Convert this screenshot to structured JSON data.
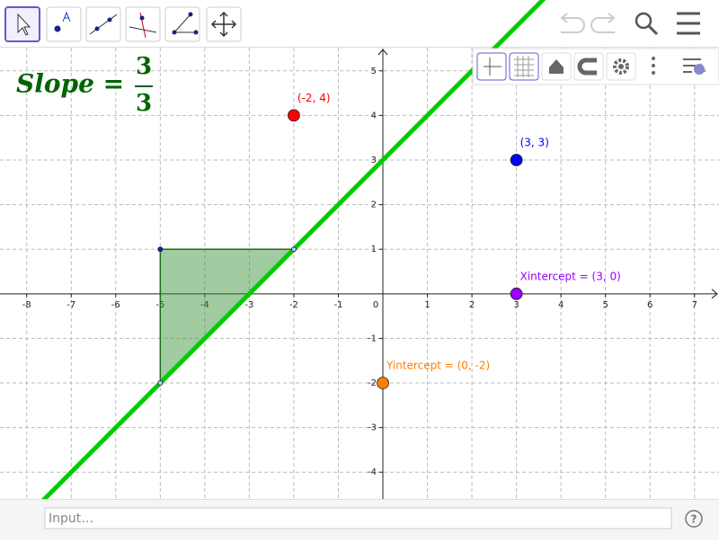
{
  "slope_label": {
    "text": "Slope =",
    "numerator": 3,
    "denominator": 3
  },
  "graphics": {
    "xlim": [
      -8.6,
      7.55
    ],
    "ylim": [
      -4.6,
      5.52
    ],
    "xticks": [
      -8,
      -7,
      -6,
      -5,
      -4,
      -3,
      -2,
      -1,
      0,
      1,
      2,
      3,
      4,
      5,
      6,
      7
    ],
    "yticks": [
      -4,
      -3,
      -2,
      -1,
      1,
      2,
      3,
      4,
      5
    ],
    "grid": true,
    "line": {
      "through": [
        [
          -5,
          -2
        ],
        [
          -2,
          1
        ]
      ],
      "color": "#00cc00"
    },
    "triangle": {
      "vertices": [
        [
          -5,
          1
        ],
        [
          -2,
          1
        ],
        [
          -5,
          -2
        ]
      ],
      "color": "#2e8b2e"
    },
    "points": [
      {
        "label": "(-2, 4)",
        "x": -2,
        "y": 4,
        "color": "#ff0000"
      },
      {
        "label": "(3, 3)",
        "x": 3,
        "y": 3,
        "color": "#0000ff"
      },
      {
        "label": "Xintercept = (3, 0)",
        "x": 3,
        "y": 0,
        "color": "#9900ff"
      },
      {
        "label": "Yintercept = (0, -2)",
        "x": 0,
        "y": -2,
        "color": "#ff7f00"
      }
    ]
  },
  "input_bar": {
    "placeholder": "Input…",
    "help": "?"
  }
}
